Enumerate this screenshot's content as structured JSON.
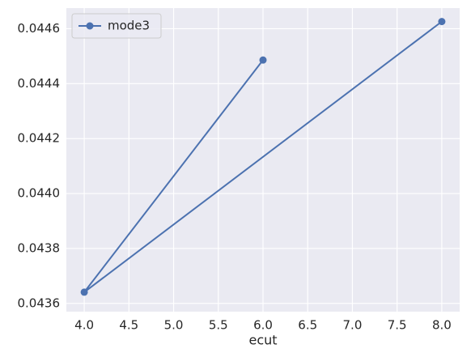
{
  "chart_data": {
    "type": "line",
    "x_label": "ecut",
    "series": [
      {
        "name": "mode3",
        "color": "#4c72b0",
        "x": [
          6.0,
          4.0,
          8.0
        ],
        "values": [
          0.044486,
          0.043641,
          0.044626
        ]
      }
    ],
    "xlim": [
      3.8,
      8.2
    ],
    "xticks": [
      {
        "value": 4,
        "label": "4.0"
      },
      4.5,
      {
        "value": 5,
        "label": "5.0"
      },
      5.5,
      {
        "value": 6,
        "label": "6.0"
      },
      6.5,
      {
        "value": 7,
        "label": "7.0"
      },
      7.5,
      {
        "value": 8,
        "label": "8.0"
      }
    ],
    "ylim": [
      0.04357,
      0.044675
    ],
    "yticks": [
      0.0436,
      0.0438,
      {
        "value": 0.044,
        "label": "0.0440"
      },
      0.0442,
      0.0444,
      0.0446
    ],
    "grid": true,
    "legend": "upper left"
  }
}
